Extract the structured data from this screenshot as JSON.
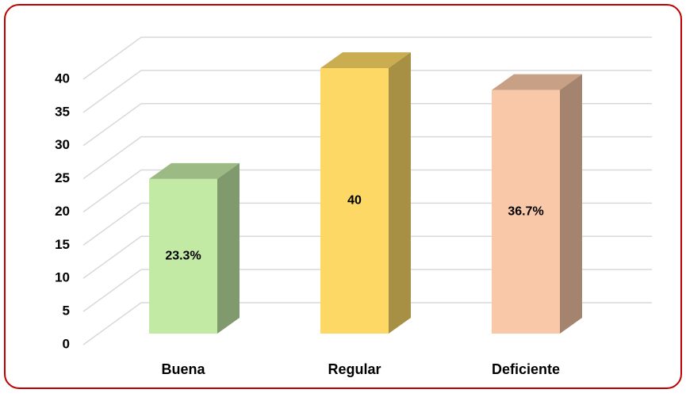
{
  "chart_data": {
    "type": "bar3d",
    "categories": [
      "Buena",
      "Regular",
      "Deficiente"
    ],
    "values": [
      23.3,
      40,
      36.7
    ],
    "value_labels": [
      "23.3%",
      "40",
      "36.7%"
    ],
    "colors": [
      "#c3eaa5",
      "#fdd865",
      "#f9c8a8"
    ],
    "ylim": [
      0,
      40
    ],
    "yticks": [
      0,
      5,
      10,
      15,
      20,
      25,
      30,
      35,
      40
    ],
    "grid": true
  }
}
